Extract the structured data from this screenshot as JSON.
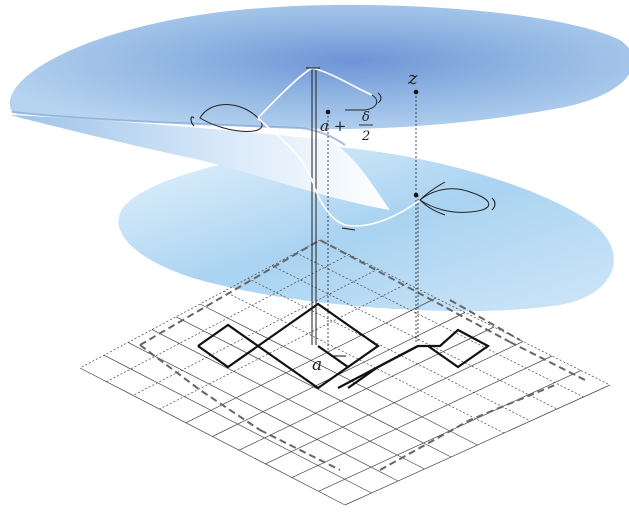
{
  "labels": {
    "z": "z",
    "a": "a",
    "delta_expr_prefix": "a +",
    "delta_num": "δ",
    "delta_den": "2"
  },
  "colors": {
    "surface_upper": "#8fb4e2",
    "surface_lower": "#a9d3f1",
    "surface_highlight": "#e6f2fc",
    "grid_line": "#444444",
    "path_bold": "#111111",
    "path_dashed": "#666666"
  }
}
